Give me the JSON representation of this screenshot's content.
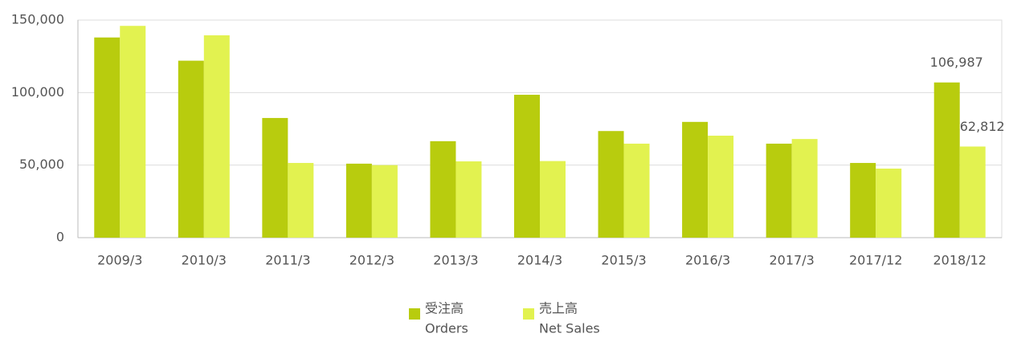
{
  "chart_data": {
    "type": "bar",
    "categories": [
      "2009/3",
      "2010/3",
      "2011/3",
      "2012/3",
      "2013/3",
      "2014/3",
      "2015/3",
      "2016/3",
      "2017/3",
      "2017/12",
      "2018/12"
    ],
    "series": [
      {
        "name": "受注高",
        "subname": "Orders",
        "color": "#b8cc0e",
        "values": [
          138000,
          122000,
          82500,
          51000,
          66500,
          98500,
          73500,
          79800,
          64800,
          51500,
          106987
        ],
        "value_labels": [
          null,
          null,
          null,
          null,
          null,
          null,
          null,
          null,
          null,
          null,
          "106,987"
        ]
      },
      {
        "name": "売上高",
        "subname": "Net Sales",
        "color": "#e2f250",
        "values": [
          146000,
          139500,
          51500,
          50000,
          52600,
          52800,
          64800,
          70300,
          68000,
          47600,
          62812
        ],
        "value_labels": [
          null,
          null,
          null,
          null,
          null,
          null,
          null,
          null,
          null,
          null,
          "62,812"
        ]
      }
    ],
    "ylim": [
      0,
      150000
    ],
    "yticks": [
      0,
      {
        "value": 50000,
        "label": "50,000"
      },
      {
        "value": 100000,
        "label": "100,000"
      },
      {
        "value": 150000,
        "label": "150,000"
      }
    ],
    "grid": true
  }
}
